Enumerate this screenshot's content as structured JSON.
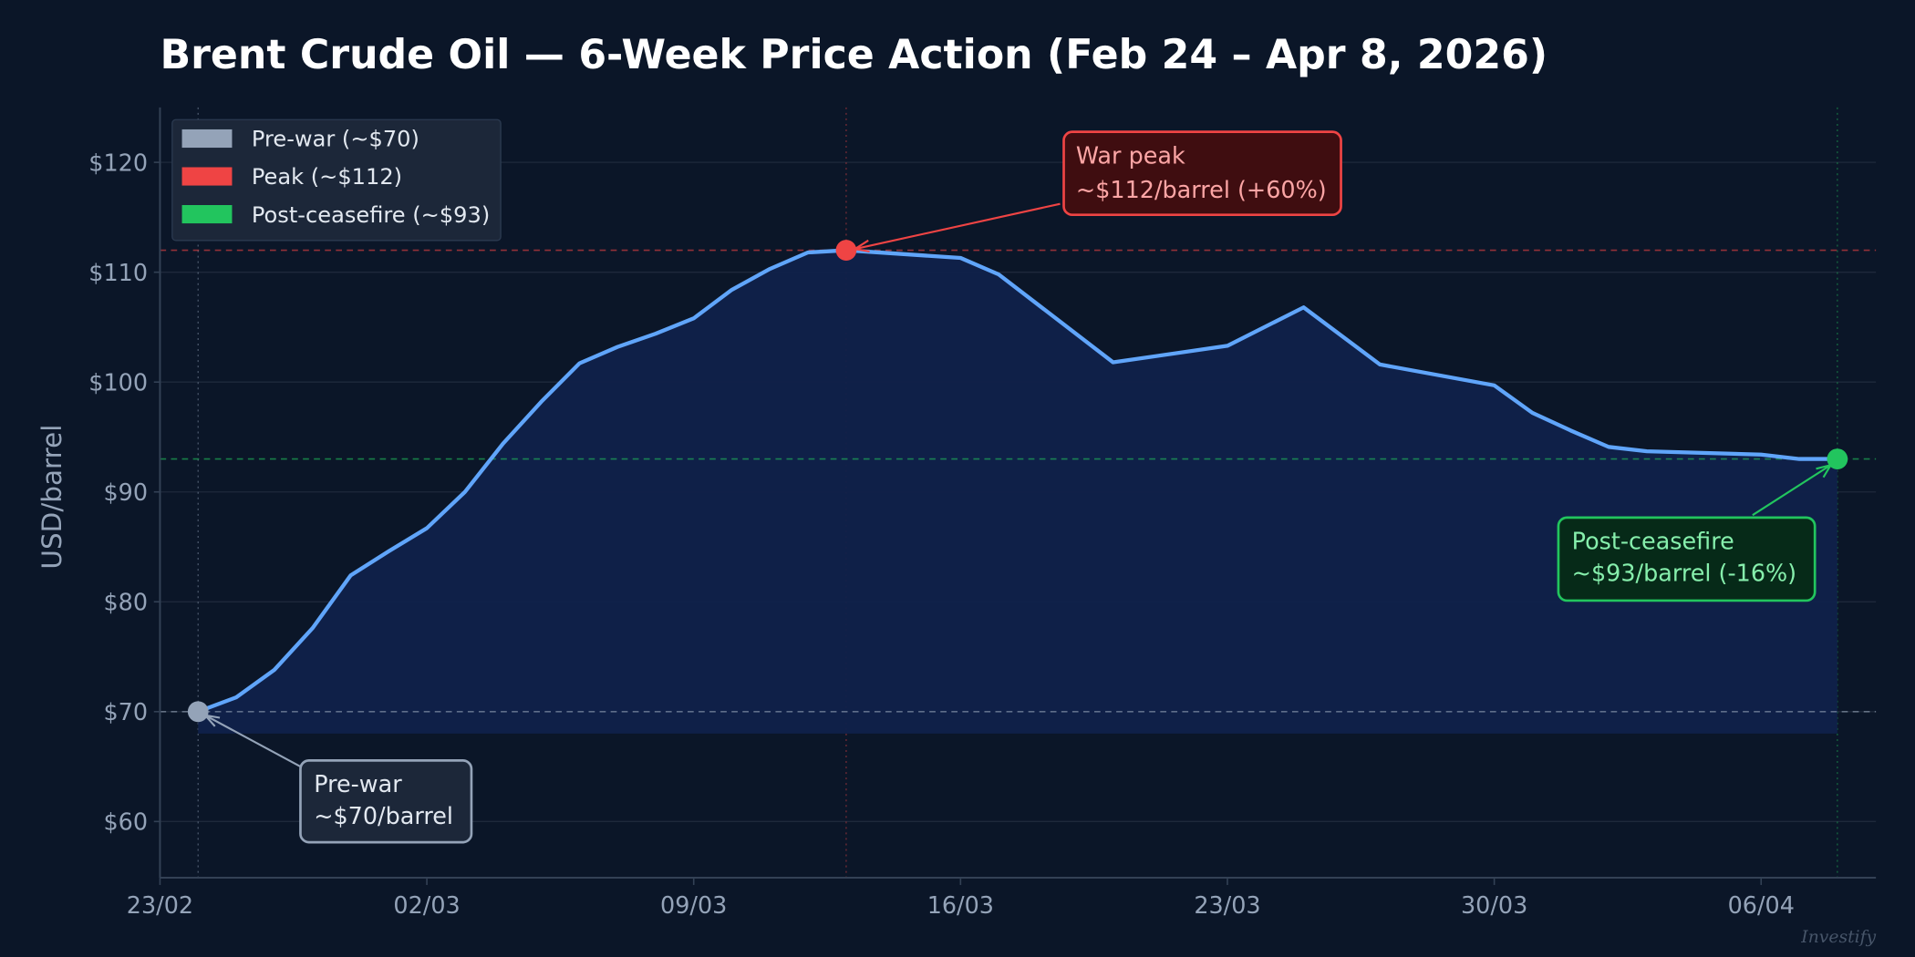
{
  "title": "Brent Crude Oil — 6-Week Price Action (Feb 24 – Apr 8, 2026)",
  "watermark": "Investify",
  "colors": {
    "background": "#0b1628",
    "grid": "#1e293b",
    "axis": "#334155",
    "line": "#60a5fa",
    "fill": "#10214a",
    "prewar": "#94a3b8",
    "peak": "#ef4444",
    "postceasefire": "#22c55e"
  },
  "legend": {
    "items": [
      {
        "label": "Pre-war (~$70)",
        "color": "#94a3b8"
      },
      {
        "label": "Peak (~$112)",
        "color": "#ef4444"
      },
      {
        "label": "Post-ceasefire (~$93)",
        "color": "#22c55e"
      }
    ]
  },
  "annotations": {
    "peak": {
      "line1": "War peak",
      "line2": "~$112/barrel (+60%)"
    },
    "prewar": {
      "line1": "Pre-war",
      "line2": "~$70/barrel"
    },
    "post": {
      "line1": "Post-ceasefire",
      "line2": "~$93/barrel (-16%)"
    }
  },
  "chart_data": {
    "type": "area",
    "title": "Brent Crude Oil — 6-Week Price Action (Feb 24 – Apr 8, 2026)",
    "xlabel": "",
    "ylabel": "USD/barrel",
    "ylim": [
      55,
      125
    ],
    "yticks": [
      60,
      70,
      80,
      90,
      100,
      110,
      120
    ],
    "ytick_labels": [
      "$60",
      "$70",
      "$80",
      "$90",
      "$100",
      "$110",
      "$120"
    ],
    "xtick_labels": [
      "23/02",
      "02/03",
      "09/03",
      "16/03",
      "23/03",
      "30/03",
      "06/04"
    ],
    "xtick_day_offsets": [
      0,
      7,
      14,
      21,
      28,
      35,
      42
    ],
    "grid": true,
    "legend_position": "upper left",
    "fill_baseline": 68,
    "reference_lines": [
      {
        "name": "Pre-war",
        "value": 70,
        "color": "#94a3b8"
      },
      {
        "name": "Peak",
        "value": 112,
        "color": "#ef4444"
      },
      {
        "name": "Post-ceasefire",
        "value": 93,
        "color": "#22c55e"
      }
    ],
    "series": [
      {
        "name": "Brent Crude",
        "x": [
          "24/02",
          "25/02",
          "26/02",
          "27/02",
          "28/02",
          "01/03",
          "02/03",
          "03/03",
          "04/03",
          "05/03",
          "06/03",
          "07/03",
          "08/03",
          "09/03",
          "10/03",
          "11/03",
          "12/03",
          "13/03",
          "16/03",
          "17/03",
          "20/03",
          "23/03",
          "25/03",
          "27/03",
          "30/03",
          "31/03",
          "01/04",
          "02/04",
          "03/04",
          "06/04",
          "07/04",
          "08/04"
        ],
        "day_offsets": [
          1,
          2,
          3,
          4,
          5,
          6,
          7,
          8,
          9,
          10,
          11,
          12,
          13,
          14,
          15,
          16,
          17,
          18,
          21,
          22,
          25,
          28,
          30,
          32,
          35,
          36,
          37,
          38,
          39,
          42,
          43,
          44
        ],
        "values": [
          70.0,
          71.3,
          73.8,
          77.6,
          82.4,
          84.6,
          86.7,
          90.0,
          94.4,
          98.2,
          101.7,
          103.2,
          104.4,
          105.8,
          108.4,
          110.3,
          111.8,
          112.0,
          111.3,
          109.8,
          101.8,
          103.3,
          106.8,
          101.6,
          99.7,
          97.2,
          95.6,
          94.1,
          93.7,
          93.4,
          93.0,
          93.0
        ]
      }
    ],
    "markers": [
      {
        "name": "Pre-war",
        "day_offset": 1,
        "value": 70,
        "color": "#94a3b8"
      },
      {
        "name": "War peak",
        "day_offset": 18,
        "value": 112,
        "color": "#ef4444"
      },
      {
        "name": "Post-ceasefire",
        "day_offset": 44,
        "value": 93,
        "color": "#22c55e"
      }
    ]
  }
}
